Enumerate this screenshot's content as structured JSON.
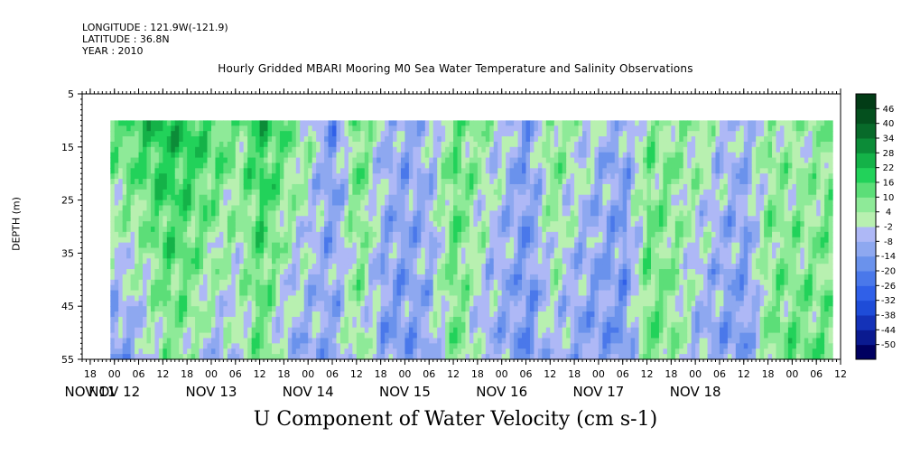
{
  "header": {
    "longitude": "LONGITUDE : 121.9W(-121.9)",
    "latitude": "LATITUDE : 36.8N",
    "year": "YEAR : 2010"
  },
  "chart_data": {
    "type": "heatmap",
    "title": "Hourly Gridded MBARI Mooring M0 Sea Water Temperature and Salinity Observations",
    "xlabel": "U Component of Water Velocity (cm s-1)",
    "ylabel": "DEPTH (m)",
    "y_range": [
      5,
      55
    ],
    "y_ticks": [
      5,
      15,
      25,
      35,
      45,
      55
    ],
    "y_tick_labels": [
      "5",
      "15",
      "25",
      "35",
      "45",
      "55"
    ],
    "data_depth_range": [
      10,
      55
    ],
    "x_range_hours": [
      -8,
      180
    ],
    "data_start_hour": -1,
    "data_end_hour": 178,
    "hour_ticks": [
      {
        "hour": -6,
        "label": "18"
      },
      {
        "hour": 0,
        "label": "00"
      },
      {
        "hour": 6,
        "label": "06"
      },
      {
        "hour": 12,
        "label": "12"
      },
      {
        "hour": 18,
        "label": "18"
      },
      {
        "hour": 24,
        "label": "00"
      },
      {
        "hour": 30,
        "label": "06"
      },
      {
        "hour": 36,
        "label": "12"
      },
      {
        "hour": 42,
        "label": "18"
      },
      {
        "hour": 48,
        "label": "00"
      },
      {
        "hour": 54,
        "label": "06"
      },
      {
        "hour": 60,
        "label": "12"
      },
      {
        "hour": 66,
        "label": "18"
      },
      {
        "hour": 72,
        "label": "00"
      },
      {
        "hour": 78,
        "label": "06"
      },
      {
        "hour": 84,
        "label": "12"
      },
      {
        "hour": 90,
        "label": "18"
      },
      {
        "hour": 96,
        "label": "00"
      },
      {
        "hour": 102,
        "label": "06"
      },
      {
        "hour": 108,
        "label": "12"
      },
      {
        "hour": 114,
        "label": "18"
      },
      {
        "hour": 120,
        "label": "00"
      },
      {
        "hour": 126,
        "label": "06"
      },
      {
        "hour": 132,
        "label": "12"
      },
      {
        "hour": 138,
        "label": "18"
      },
      {
        "hour": 144,
        "label": "00"
      },
      {
        "hour": 150,
        "label": "06"
      },
      {
        "hour": 156,
        "label": "12"
      },
      {
        "hour": 162,
        "label": "18"
      },
      {
        "hour": 168,
        "label": "00"
      },
      {
        "hour": 174,
        "label": "06"
      },
      {
        "hour": 180,
        "label": "12"
      }
    ],
    "day_labels": [
      {
        "hour": -6,
        "label": "NOV 11"
      },
      {
        "hour": 0,
        "label": "NOV 12"
      },
      {
        "hour": 24,
        "label": "NOV 13"
      },
      {
        "hour": 48,
        "label": "NOV 14"
      },
      {
        "hour": 72,
        "label": "NOV 15"
      },
      {
        "hour": 96,
        "label": "NOV 16"
      },
      {
        "hour": 120,
        "label": "NOV 17"
      },
      {
        "hour": 144,
        "label": "NOV 18"
      }
    ],
    "colorbar": {
      "levels": [
        -50,
        -44,
        -38,
        -32,
        -26,
        -20,
        -14,
        -8,
        -2,
        4,
        10,
        16,
        22,
        28,
        34,
        40,
        46
      ],
      "labels": [
        "46",
        "40",
        "34",
        "28",
        "22",
        "16",
        "10",
        "4",
        "-2",
        "-8",
        "-14",
        "-20",
        "-26",
        "-32",
        "-38",
        "-44",
        "-50"
      ],
      "colors": [
        "#000060",
        "#0a1a90",
        "#1432b8",
        "#1e4cd8",
        "#3060e8",
        "#4a78ea",
        "#6a92ec",
        "#8ea8f0",
        "#aeb8f6",
        "#b8f0b0",
        "#8eea98",
        "#5cde78",
        "#22d25a",
        "#14b248",
        "#0c8c38",
        "#086a2a",
        "#04501e",
        "#023c16"
      ]
    },
    "u_values_cm_s": [
      {
        "hour": 0,
        "surface": 12,
        "bottom": -14
      },
      {
        "hour": 6,
        "surface": 18,
        "bottom": -10
      },
      {
        "hour": 12,
        "surface": 22,
        "bottom": 6
      },
      {
        "hour": 18,
        "surface": 20,
        "bottom": 4
      },
      {
        "hour": 24,
        "surface": 16,
        "bottom": -6
      },
      {
        "hour": 30,
        "surface": 8,
        "bottom": -4
      },
      {
        "hour": 36,
        "surface": 20,
        "bottom": 10
      },
      {
        "hour": 42,
        "surface": 12,
        "bottom": -8
      },
      {
        "hour": 48,
        "surface": 2,
        "bottom": -10
      },
      {
        "hour": 54,
        "surface": -16,
        "bottom": -8
      },
      {
        "hour": 60,
        "surface": 14,
        "bottom": 4
      },
      {
        "hour": 66,
        "surface": -6,
        "bottom": -12
      },
      {
        "hour": 72,
        "surface": -10,
        "bottom": -14
      },
      {
        "hour": 78,
        "surface": -6,
        "bottom": -8
      },
      {
        "hour": 84,
        "surface": 12,
        "bottom": 10
      },
      {
        "hour": 90,
        "surface": 6,
        "bottom": -6
      },
      {
        "hour": 96,
        "surface": -4,
        "bottom": -10
      },
      {
        "hour": 102,
        "surface": -14,
        "bottom": -16
      },
      {
        "hour": 108,
        "surface": 10,
        "bottom": -4
      },
      {
        "hour": 114,
        "surface": 2,
        "bottom": -12
      },
      {
        "hour": 120,
        "surface": -6,
        "bottom": -14
      },
      {
        "hour": 126,
        "surface": -10,
        "bottom": -16
      },
      {
        "hour": 132,
        "surface": 8,
        "bottom": 12
      },
      {
        "hour": 138,
        "surface": 6,
        "bottom": 6
      },
      {
        "hour": 144,
        "surface": 4,
        "bottom": -8
      },
      {
        "hour": 150,
        "surface": -4,
        "bottom": -12
      },
      {
        "hour": 156,
        "surface": -8,
        "bottom": -14
      },
      {
        "hour": 162,
        "surface": 6,
        "bottom": 8
      },
      {
        "hour": 168,
        "surface": 2,
        "bottom": 12
      },
      {
        "hour": 174,
        "surface": 4,
        "bottom": 10
      },
      {
        "hour": 178,
        "surface": 6,
        "bottom": 12
      }
    ]
  }
}
